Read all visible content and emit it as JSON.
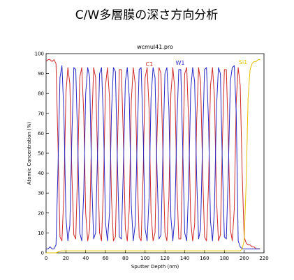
{
  "chart_data": {
    "type": "line",
    "title": "C/W多層膜の深さ方向分析",
    "subtitle": "wcmul41.pro",
    "xlabel": "Sputter Depth (nm)",
    "ylabel": "Atomic Concentration (%)",
    "xlim": [
      0,
      220
    ],
    "ylim": [
      0,
      100
    ],
    "xticks": [
      0,
      20,
      40,
      60,
      80,
      100,
      120,
      140,
      160,
      180,
      200,
      220
    ],
    "yticks": [
      0,
      10,
      20,
      30,
      40,
      50,
      60,
      70,
      80,
      90,
      100
    ],
    "legend_placement": "top-inside",
    "series": [
      {
        "name": "C1",
        "color": "#d02828",
        "x": [
          0,
          2,
          4,
          6,
          8,
          10,
          12,
          14,
          16,
          18,
          20,
          22,
          24,
          26,
          28,
          30,
          32,
          34,
          36,
          38,
          40,
          42,
          44,
          46,
          48,
          50,
          52,
          54,
          56,
          58,
          60,
          62,
          64,
          66,
          68,
          70,
          72,
          74,
          76,
          78,
          80,
          82,
          84,
          86,
          88,
          90,
          92,
          94,
          96,
          98,
          100,
          102,
          104,
          106,
          108,
          110,
          112,
          114,
          116,
          118,
          120,
          122,
          124,
          126,
          128,
          130,
          132,
          134,
          136,
          138,
          140,
          142,
          144,
          146,
          148,
          150,
          152,
          154,
          156,
          158,
          160,
          162,
          164,
          166,
          168,
          170,
          172,
          174,
          176,
          178,
          180,
          182,
          184,
          186,
          188,
          190,
          192,
          194,
          196,
          198,
          200,
          202,
          204,
          206,
          208,
          210,
          212,
          214,
          216
        ],
        "values": [
          96,
          97,
          97,
          96,
          97,
          95,
          55,
          8,
          6,
          30,
          80,
          93,
          85,
          40,
          9,
          7,
          45,
          88,
          93,
          70,
          20,
          6,
          12,
          62,
          93,
          88,
          48,
          10,
          6,
          35,
          84,
          93,
          78,
          28,
          6,
          8,
          52,
          92,
          92,
          58,
          12,
          6,
          22,
          76,
          93,
          85,
          40,
          8,
          6,
          40,
          88,
          93,
          72,
          20,
          6,
          10,
          58,
          93,
          90,
          50,
          10,
          6,
          28,
          80,
          93,
          82,
          35,
          7,
          7,
          48,
          90,
          93,
          65,
          16,
          6,
          14,
          66,
          93,
          86,
          42,
          8,
          6,
          34,
          84,
          93,
          78,
          28,
          6,
          9,
          55,
          92,
          92,
          58,
          12,
          6,
          22,
          76,
          93,
          84,
          40,
          8,
          5,
          4,
          4,
          3,
          3,
          2,
          2,
          2
        ]
      },
      {
        "name": "W1",
        "color": "#2828c8",
        "x": [
          0,
          2,
          4,
          6,
          8,
          10,
          12,
          14,
          16,
          18,
          20,
          22,
          24,
          26,
          28,
          30,
          32,
          34,
          36,
          38,
          40,
          42,
          44,
          46,
          48,
          50,
          52,
          54,
          56,
          58,
          60,
          62,
          64,
          66,
          68,
          70,
          72,
          74,
          76,
          78,
          80,
          82,
          84,
          86,
          88,
          90,
          92,
          94,
          96,
          98,
          100,
          102,
          104,
          106,
          108,
          110,
          112,
          114,
          116,
          118,
          120,
          122,
          124,
          126,
          128,
          130,
          132,
          134,
          136,
          138,
          140,
          142,
          144,
          146,
          148,
          150,
          152,
          154,
          156,
          158,
          160,
          162,
          164,
          166,
          168,
          170,
          172,
          174,
          176,
          178,
          180,
          182,
          184,
          186,
          188,
          190,
          192,
          194,
          196,
          198,
          200,
          202,
          204,
          206,
          208,
          210,
          212,
          214,
          216
        ],
        "values": [
          2,
          2,
          3,
          2,
          2,
          4,
          42,
          88,
          94,
          70,
          18,
          6,
          14,
          58,
          93,
          92,
          54,
          10,
          6,
          30,
          80,
          93,
          88,
          38,
          7,
          10,
          50,
          90,
          93,
          64,
          15,
          6,
          20,
          70,
          93,
          91,
          46,
          8,
          7,
          42,
          86,
          93,
          78,
          24,
          6,
          14,
          58,
          92,
          93,
          60,
          12,
          6,
          28,
          78,
          93,
          88,
          42,
          7,
          9,
          50,
          90,
          93,
          72,
          18,
          6,
          18,
          64,
          92,
          92,
          52,
          10,
          6,
          34,
          82,
          93,
          86,
          38,
          7,
          12,
          56,
          92,
          93,
          66,
          16,
          6,
          22,
          72,
          93,
          90,
          45,
          8,
          7,
          40,
          86,
          93,
          94,
          70,
          6,
          3,
          2,
          2,
          2,
          2,
          2,
          2,
          2,
          2,
          2,
          2
        ]
      },
      {
        "name": "Si1",
        "color": "#e6c000",
        "x": [
          0,
          5,
          10,
          15,
          20,
          30,
          40,
          50,
          60,
          70,
          80,
          90,
          100,
          110,
          120,
          130,
          140,
          150,
          160,
          170,
          180,
          190,
          196,
          198,
          200,
          202,
          204,
          206,
          208,
          210,
          212,
          214,
          216
        ],
        "values": [
          0,
          0,
          0,
          1,
          1,
          1,
          1,
          1,
          1,
          1,
          1,
          1,
          1,
          1,
          1,
          1,
          1,
          1,
          1,
          1,
          1,
          1,
          1,
          2,
          6,
          35,
          78,
          92,
          95,
          96,
          96,
          97,
          97
        ]
      }
    ]
  }
}
